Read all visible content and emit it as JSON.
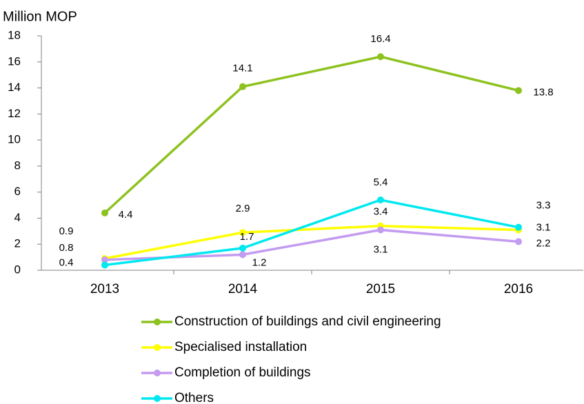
{
  "chart_data": {
    "type": "line",
    "y_axis_label": "Million MOP",
    "categories": [
      "2013",
      "2014",
      "2015",
      "2016"
    ],
    "series": [
      {
        "name": "Construction of buildings and civil engineering",
        "color": "#8dc21f",
        "values": [
          4.4,
          14.1,
          16.4,
          13.8
        ]
      },
      {
        "name": "Specialised installation",
        "color": "#ffff00",
        "values": [
          0.9,
          2.9,
          3.4,
          3.1
        ]
      },
      {
        "name": "Completion of buildings",
        "color": "#c39bf0",
        "values": [
          0.8,
          1.2,
          3.1,
          2.2
        ]
      },
      {
        "name": "Others",
        "color": "#00e8f0",
        "values": [
          0.4,
          1.7,
          5.4,
          3.3
        ]
      }
    ],
    "ylim": [
      0,
      18
    ],
    "yticks": [
      0,
      2,
      4,
      6,
      8,
      10,
      12,
      14,
      16,
      18
    ],
    "grid": false,
    "legend": "bottom"
  }
}
